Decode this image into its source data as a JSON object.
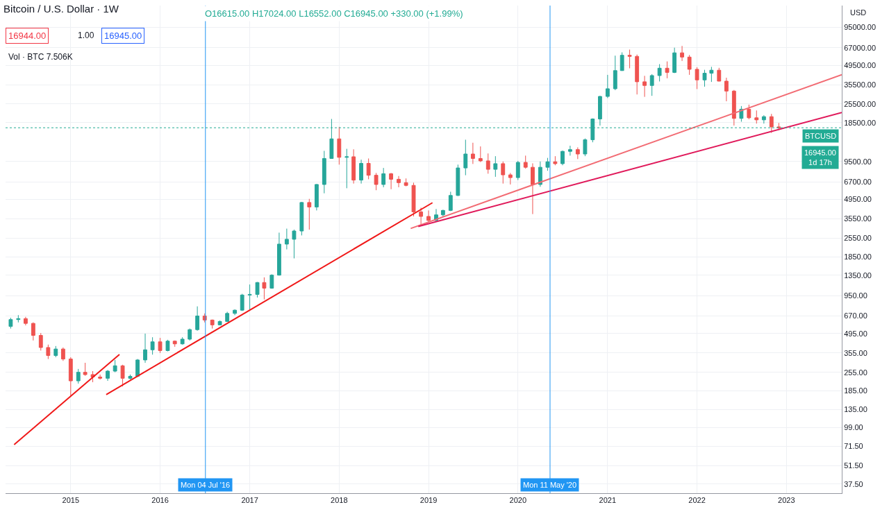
{
  "chart_data": {
    "type": "candlestick",
    "title": "Bitcoin / U.S. Dollar · 1W",
    "annotations": [
      "O16615.00 H17024.00 L16552.00 C16945.00 +330.00 (+1.99%)",
      "16944.00",
      "1.00",
      "16945.00",
      "Vol · BTC 7.506K",
      "USD",
      "16945.00\n1d 17h"
    ],
    "x": [
      "2014-05",
      "2014-06",
      "2014-07",
      "2014-08",
      "2014-09",
      "2014-10",
      "2014-11",
      "2014-12",
      "2015-01",
      "2015-02",
      "2015-03",
      "2015-04",
      "2015-05",
      "2015-06",
      "2015-07",
      "2015-08",
      "2015-09",
      "2015-10",
      "2015-11",
      "2015-12",
      "2016-01",
      "2016-02",
      "2016-03",
      "2016-04",
      "2016-05",
      "2016-06",
      "2016-07",
      "2016-08",
      "2016-09",
      "2016-10",
      "2016-11",
      "2016-12",
      "2017-01",
      "2017-02",
      "2017-03",
      "2017-04",
      "2017-05",
      "2017-06",
      "2017-07",
      "2017-08",
      "2017-09",
      "2017-10",
      "2017-11",
      "2017-12",
      "2018-01",
      "2018-02",
      "2018-03",
      "2018-04",
      "2018-05",
      "2018-06",
      "2018-07",
      "2018-08",
      "2018-09",
      "2018-10",
      "2018-11",
      "2018-12",
      "2019-01",
      "2019-02",
      "2019-03",
      "2019-04",
      "2019-05",
      "2019-06",
      "2019-07",
      "2019-08",
      "2019-09",
      "2019-10",
      "2019-11",
      "2019-12",
      "2020-01",
      "2020-02",
      "2020-03",
      "2020-04",
      "2020-05",
      "2020-06",
      "2020-07",
      "2020-08",
      "2020-09",
      "2020-10",
      "2020-11",
      "2020-12",
      "2021-01",
      "2021-02",
      "2021-03",
      "2021-04",
      "2021-05",
      "2021-06",
      "2021-07",
      "2021-08",
      "2021-09",
      "2021-10",
      "2021-11",
      "2021-12",
      "2022-01",
      "2022-02",
      "2022-03",
      "2022-04",
      "2022-05",
      "2022-06",
      "2022-07",
      "2022-08",
      "2022-09",
      "2022-10",
      "2022-11",
      "2022-12"
    ],
    "ohlc": [
      [
        560,
        650,
        540,
        630
      ],
      [
        630,
        680,
        600,
        640
      ],
      [
        640,
        660,
        570,
        590
      ],
      [
        590,
        600,
        440,
        480
      ],
      [
        480,
        500,
        370,
        390
      ],
      [
        390,
        410,
        320,
        340
      ],
      [
        340,
        400,
        330,
        380
      ],
      [
        380,
        390,
        310,
        320
      ],
      [
        320,
        330,
        170,
        220
      ],
      [
        220,
        270,
        210,
        255
      ],
      [
        255,
        300,
        240,
        245
      ],
      [
        245,
        260,
        215,
        235
      ],
      [
        235,
        245,
        225,
        230
      ],
      [
        230,
        265,
        220,
        260
      ],
      [
        260,
        315,
        255,
        285
      ],
      [
        285,
        290,
        200,
        230
      ],
      [
        230,
        245,
        225,
        238
      ],
      [
        238,
        320,
        235,
        315
      ],
      [
        315,
        495,
        300,
        375
      ],
      [
        375,
        465,
        345,
        430
      ],
      [
        430,
        460,
        355,
        370
      ],
      [
        370,
        445,
        365,
        435
      ],
      [
        435,
        440,
        395,
        415
      ],
      [
        415,
        465,
        410,
        450
      ],
      [
        450,
        540,
        440,
        530
      ],
      [
        530,
        790,
        520,
        670
      ],
      [
        670,
        700,
        600,
        625
      ],
      [
        625,
        630,
        540,
        575
      ],
      [
        575,
        620,
        570,
        610
      ],
      [
        610,
        720,
        605,
        700
      ],
      [
        700,
        750,
        680,
        740
      ],
      [
        740,
        980,
        730,
        960
      ],
      [
        960,
        1150,
        750,
        970
      ],
      [
        970,
        1200,
        920,
        1190
      ],
      [
        1190,
        1300,
        890,
        1080
      ],
      [
        1080,
        1370,
        1070,
        1350
      ],
      [
        1350,
        2800,
        1340,
        2300
      ],
      [
        2300,
        3000,
        2100,
        2500
      ],
      [
        2500,
        2950,
        1800,
        2880
      ],
      [
        2880,
        4750,
        2670,
        4700
      ],
      [
        4700,
        5000,
        2950,
        4350
      ],
      [
        4350,
        6450,
        4100,
        6400
      ],
      [
        6400,
        11400,
        5500,
        10000
      ],
      [
        10000,
        19700,
        10000,
        14000
      ],
      [
        14000,
        17200,
        9000,
        10200
      ],
      [
        10200,
        11800,
        6000,
        10300
      ],
      [
        10300,
        11700,
        6500,
        6900
      ],
      [
        6900,
        9800,
        6500,
        9200
      ],
      [
        9200,
        10000,
        7000,
        7500
      ],
      [
        7500,
        7800,
        5800,
        6400
      ],
      [
        6400,
        8500,
        6100,
        7700
      ],
      [
        7700,
        7800,
        5900,
        7000
      ],
      [
        7000,
        7400,
        6100,
        6600
      ],
      [
        6600,
        7100,
        6200,
        6300
      ],
      [
        6300,
        6600,
        3700,
        4000
      ],
      [
        4000,
        4300,
        3150,
        3700
      ],
      [
        3700,
        4100,
        3350,
        3450
      ],
      [
        3450,
        4200,
        3400,
        3800
      ],
      [
        3800,
        4150,
        3700,
        4100
      ],
      [
        4100,
        5650,
        4050,
        5300
      ],
      [
        5300,
        9000,
        5250,
        8500
      ],
      [
        8500,
        13800,
        7500,
        10800
      ],
      [
        10800,
        13100,
        9100,
        10000
      ],
      [
        10000,
        12300,
        9400,
        9600
      ],
      [
        9600,
        10900,
        7700,
        8300
      ],
      [
        8300,
        10400,
        7300,
        9150
      ],
      [
        9150,
        9500,
        6500,
        7550
      ],
      [
        7550,
        7800,
        6400,
        7200
      ],
      [
        7200,
        9600,
        6900,
        9350
      ],
      [
        9350,
        10500,
        8400,
        8600
      ],
      [
        8600,
        9200,
        3850,
        6400
      ],
      [
        6400,
        9500,
        6150,
        8600
      ],
      [
        8600,
        10100,
        8100,
        9450
      ],
      [
        9450,
        10400,
        8900,
        9150
      ],
      [
        9150,
        11450,
        8900,
        11300
      ],
      [
        11300,
        12450,
        10500,
        11650
      ],
      [
        11650,
        12100,
        9900,
        10800
      ],
      [
        10800,
        14100,
        10400,
        13800
      ],
      [
        13800,
        19900,
        13200,
        19700
      ],
      [
        19700,
        29300,
        17600,
        29000
      ],
      [
        29000,
        42000,
        28200,
        33100
      ],
      [
        33100,
        58400,
        32300,
        45200
      ],
      [
        45200,
        61800,
        45000,
        58800
      ],
      [
        58800,
        64800,
        47000,
        57700
      ],
      [
        57700,
        59500,
        30000,
        37300
      ],
      [
        37300,
        41300,
        28800,
        35000
      ],
      [
        35000,
        42500,
        29300,
        41500
      ],
      [
        41500,
        50500,
        37500,
        47100
      ],
      [
        47100,
        52900,
        39600,
        43800
      ],
      [
        43800,
        67000,
        43300,
        61300
      ],
      [
        61300,
        69000,
        53300,
        57000
      ],
      [
        57000,
        59100,
        42000,
        46200
      ],
      [
        46200,
        47900,
        32900,
        38500
      ],
      [
        38500,
        45800,
        34300,
        43200
      ],
      [
        43200,
        48200,
        37200,
        45500
      ],
      [
        45500,
        47400,
        37600,
        37700
      ],
      [
        37700,
        40000,
        26700,
        31800
      ],
      [
        31800,
        32400,
        17600,
        19900
      ],
      [
        19900,
        24600,
        18800,
        23300
      ],
      [
        23300,
        25200,
        19600,
        20100
      ],
      [
        20100,
        22800,
        18200,
        19400
      ],
      [
        19400,
        21000,
        18200,
        20500
      ],
      [
        20500,
        21500,
        15500,
        17200
      ],
      [
        17200,
        18400,
        16300,
        16945
      ]
    ],
    "series": [
      {
        "type": "line",
        "color": "#f01818",
        "x": [
          "2014-05-15",
          "2015-07-19"
        ],
        "values": [
          73.6,
          346
        ]
      },
      {
        "type": "line",
        "color": "#f01818",
        "x": [
          "2015-05-26",
          "2019-01-17"
        ],
        "values": [
          174,
          4680
        ]
      },
      {
        "type": "line",
        "color": "#f26b73",
        "x": [
          "2018-10-20",
          "2023-08-15"
        ],
        "values": [
          3010,
          42100
        ]
      },
      {
        "type": "line",
        "color": "#e0195a",
        "x": [
          "2018-11-20",
          "2023-08-15"
        ],
        "values": [
          3110,
          22000
        ]
      }
    ],
    "ref_lines": [
      {
        "axis": "x",
        "value": "2016-07-04",
        "label": "Mon 04 Jul '16",
        "color": "#2196f3"
      },
      {
        "axis": "x",
        "value": "2020-05-11",
        "label": "Mon 11 May '20",
        "color": "#2196f3"
      },
      {
        "axis": "y",
        "value": 16945,
        "label": "BTCUSD",
        "color": "#22ab94",
        "line_style": "dotted"
      }
    ],
    "log": "y",
    "grid": true,
    "xlim": [
      "2014-04-10",
      "2023-08-15"
    ],
    "xticks": [
      "2015",
      "2016",
      "2017",
      "2018",
      "2019",
      "2020",
      "2021",
      "2022",
      "2023"
    ],
    "ylim": [
      32,
      138000
    ],
    "yticks": [
      {
        "value": 37.5,
        "label": "37.50"
      },
      {
        "value": 51.5,
        "label": "51.50"
      },
      {
        "value": 71.5,
        "label": "71.50"
      },
      {
        "value": 99,
        "label": "99.00"
      },
      {
        "value": 135,
        "label": "135.00"
      },
      {
        "value": 185,
        "label": "185.00"
      },
      {
        "value": 255,
        "label": "255.00"
      },
      {
        "value": 355,
        "label": "355.00"
      },
      {
        "value": 495,
        "label": "495.00"
      },
      {
        "value": 670,
        "label": "670.00"
      },
      {
        "value": 950,
        "label": "950.00"
      },
      {
        "value": 1350,
        "label": "1350.00"
      },
      {
        "value": 1850,
        "label": "1850.00"
      },
      {
        "value": 2550,
        "label": "2550.00"
      },
      {
        "value": 3550,
        "label": "3550.00"
      },
      {
        "value": 4950,
        "label": "4950.00"
      },
      {
        "value": 6700,
        "label": "6700.00"
      },
      {
        "value": 9500,
        "label": "9500.00"
      },
      {
        "value": 18500,
        "label": "18500.00"
      },
      {
        "value": 25500,
        "label": "25500.00"
      },
      {
        "value": 35500,
        "label": "35500.00"
      },
      {
        "value": 49500,
        "label": "49500.00"
      },
      {
        "value": 67000,
        "label": "67000.00"
      },
      {
        "value": 95000,
        "label": "95000.00"
      }
    ]
  }
}
